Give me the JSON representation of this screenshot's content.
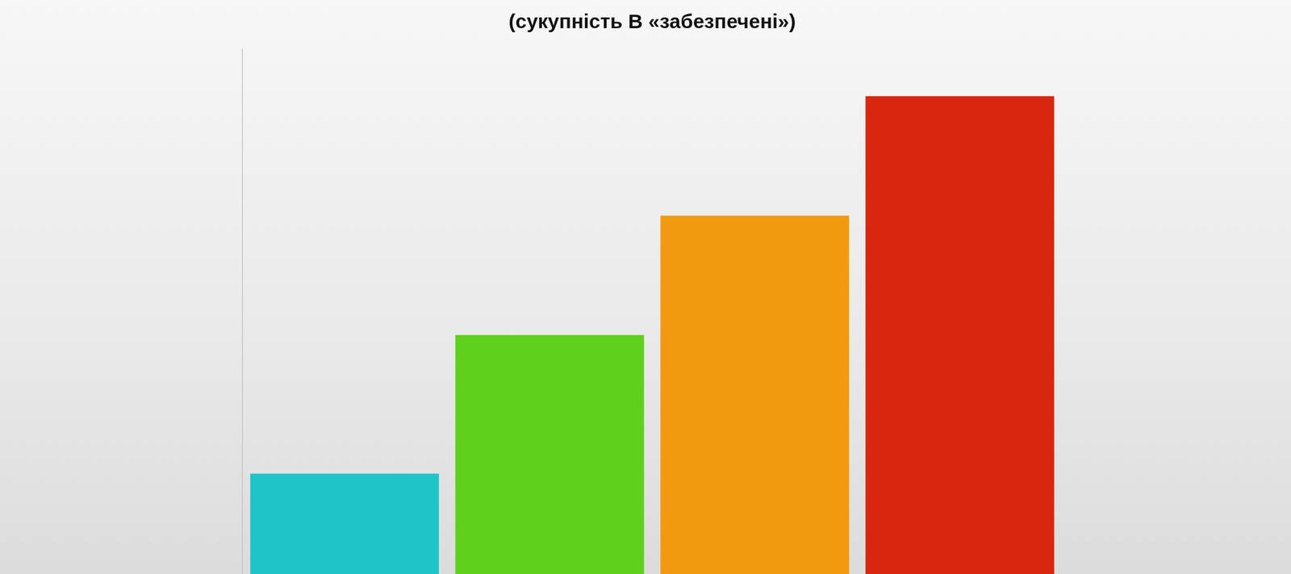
{
  "chart_data": {
    "type": "bar",
    "title": "(сукупність В «забезпечені»)",
    "categories": [
      null,
      null,
      null,
      null
    ],
    "values": [
      21,
      50,
      75,
      100
    ],
    "colors": [
      "#1fc4c8",
      "#5fd11c",
      "#f29a0f",
      "#d9260f"
    ],
    "ylim": [
      0,
      110
    ],
    "yticks": [],
    "grid": false,
    "tick_labels": false
  }
}
